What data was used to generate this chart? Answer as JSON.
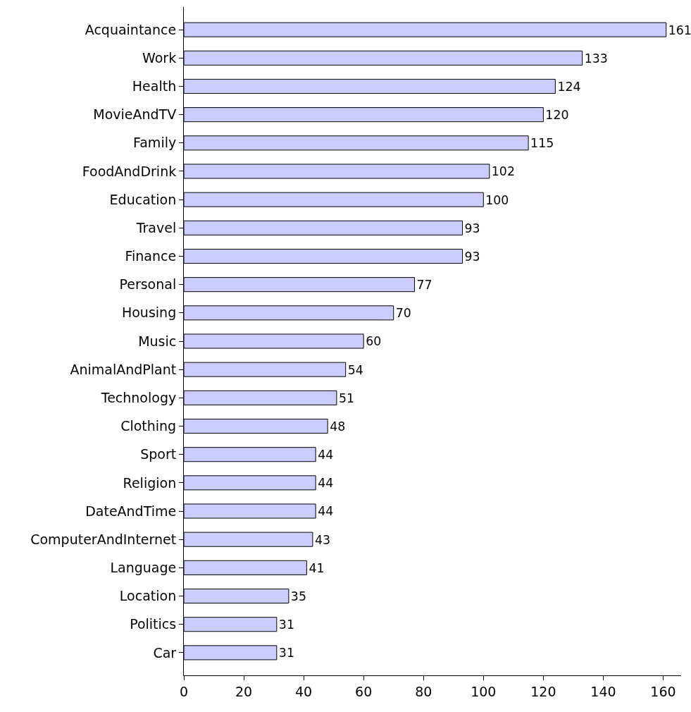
{
  "chart_data": {
    "type": "bar",
    "orientation": "horizontal",
    "categories": [
      "Acquaintance",
      "Work",
      "Health",
      "MovieAndTV",
      "Family",
      "FoodAndDrink",
      "Education",
      "Travel",
      "Finance",
      "Personal",
      "Housing",
      "Music",
      "AnimalAndPlant",
      "Technology",
      "Clothing",
      "Sport",
      "Religion",
      "DateAndTime",
      "ComputerAndInternet",
      "Language",
      "Location",
      "Politics",
      "Car"
    ],
    "values": [
      161,
      133,
      124,
      120,
      115,
      102,
      100,
      93,
      93,
      77,
      70,
      60,
      54,
      51,
      48,
      44,
      44,
      44,
      43,
      41,
      35,
      31,
      31
    ],
    "color": "#ccccff",
    "data_labels": true,
    "legend": false,
    "xlim": [
      0,
      166
    ],
    "xticks": [
      0,
      20,
      40,
      60,
      80,
      100,
      120,
      140,
      160
    ]
  }
}
